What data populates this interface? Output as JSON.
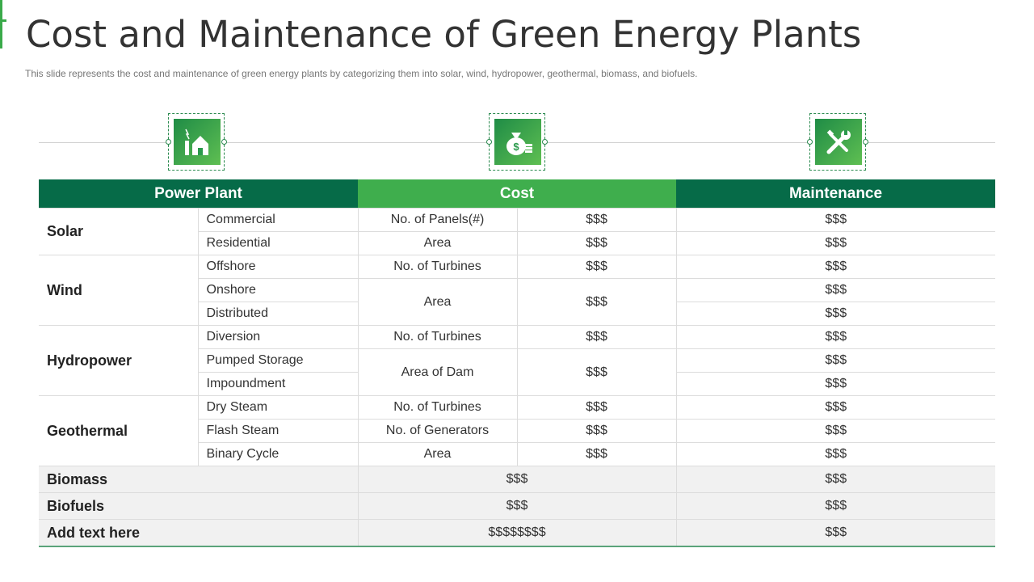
{
  "title": "Cost and Maintenance of Green Energy Plants",
  "subtitle": "This slide represents the cost and maintenance of green energy plants by categorizing them into solar, wind, hydropower, geothermal, biomass, and biofuels.",
  "icons": [
    "power-plant-icon",
    "money-bag-icon",
    "tools-icon"
  ],
  "headers": {
    "power_plant": "Power Plant",
    "cost": "Cost",
    "maintenance": "Maintenance"
  },
  "solar": {
    "label": "Solar",
    "types": [
      "Commercial",
      "Residential"
    ],
    "cost_items": [
      "No. of Panels(#)",
      "Area"
    ],
    "cost_values": [
      "$$$",
      "$$$"
    ],
    "maintenance": [
      "$$$",
      "$$$"
    ]
  },
  "wind": {
    "label": "Wind",
    "types": [
      "Offshore",
      "Onshore",
      "Distributed"
    ],
    "cost_items": [
      "No. of Turbines",
      "Area"
    ],
    "cost_values": [
      "$$$",
      "$$$"
    ],
    "maintenance": [
      "$$$",
      "$$$",
      "$$$"
    ]
  },
  "hydro": {
    "label": "Hydropower",
    "types": [
      "Diversion",
      "Pumped Storage",
      "Impoundment"
    ],
    "cost_items": [
      "No. of Turbines",
      "Area of Dam"
    ],
    "cost_values": [
      "$$$",
      "$$$"
    ],
    "maintenance": [
      "$$$",
      "$$$",
      "$$$"
    ]
  },
  "geo": {
    "label": "Geothermal",
    "types": [
      "Dry Steam",
      "Flash Steam",
      "Binary Cycle"
    ],
    "cost_items": [
      "No. of Turbines",
      "No. of Generators",
      "Area"
    ],
    "cost_values": [
      "$$$",
      "$$$",
      "$$$"
    ],
    "maintenance": [
      "$$$",
      "$$$",
      "$$$"
    ]
  },
  "summary": [
    {
      "label": "Biomass",
      "cost": "$$$",
      "maintenance": "$$$"
    },
    {
      "label": "Biofuels",
      "cost": "$$$",
      "maintenance": "$$$"
    },
    {
      "label": "Add text here",
      "cost": "$$$$$$$$",
      "maintenance": "$$$"
    }
  ],
  "colors": {
    "dark_green": "#066b48",
    "green": "#3fae4d"
  }
}
